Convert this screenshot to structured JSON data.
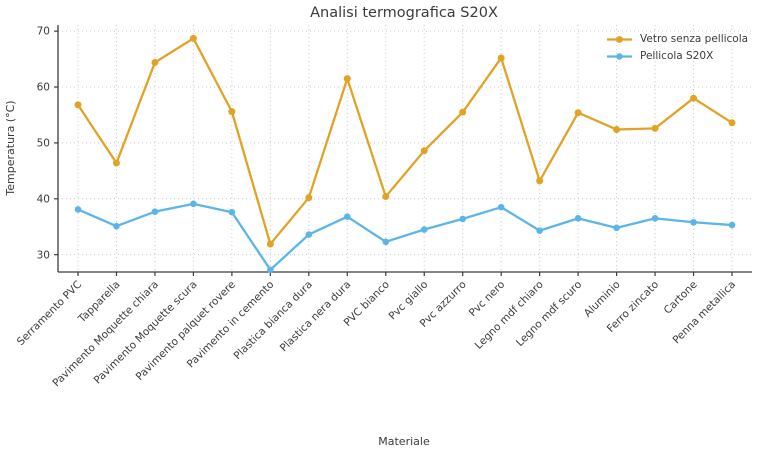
{
  "chart_data": {
    "type": "line",
    "title": "Analisi termografica S20X",
    "xlabel": "Materiale",
    "ylabel": "Temperatura (°C)",
    "categories": [
      "Serramento PVC",
      "Tapparella",
      "Pavimento Moquette chiara",
      "Pavimento Moquette scura",
      "Pavimento palquet rovere",
      "Pavimento in cemento",
      "Plastica bianca dura",
      "Plastica nera dura",
      "PVC bianco",
      "Pvc giallo",
      "Pvc azzurro",
      "Pvc nero",
      "Legno mdf chiaro",
      "Legno mdf scuro",
      "Aluminio",
      "Ferro zincato",
      "Cartone",
      "Penna metallica"
    ],
    "series": [
      {
        "name": "Vetro senza pellicola",
        "color": "#E1A325",
        "values": [
          56.8,
          46.4,
          64.4,
          68.7,
          55.6,
          31.9,
          40.2,
          61.5,
          40.4,
          48.6,
          55.5,
          65.2,
          43.2,
          55.4,
          52.4,
          52.6,
          58.0,
          53.6
        ]
      },
      {
        "name": "Pellicola S20X",
        "color": "#5BB5E7",
        "values": [
          38.1,
          35.1,
          37.7,
          39.1,
          37.6,
          27.3,
          33.6,
          36.8,
          32.3,
          34.5,
          36.4,
          38.5,
          34.3,
          36.5,
          34.8,
          36.5,
          35.8,
          35.3
        ]
      }
    ],
    "yticks": [
      30,
      40,
      50,
      60,
      70
    ],
    "ylim": [
      26.9,
      71.1
    ],
    "grid": true,
    "grid_style": "dotted",
    "legend_position": "top-right",
    "text_color": "#3b3b3b",
    "spine_color": "#3c3c3c",
    "grid_color": "#c9c9c9"
  }
}
